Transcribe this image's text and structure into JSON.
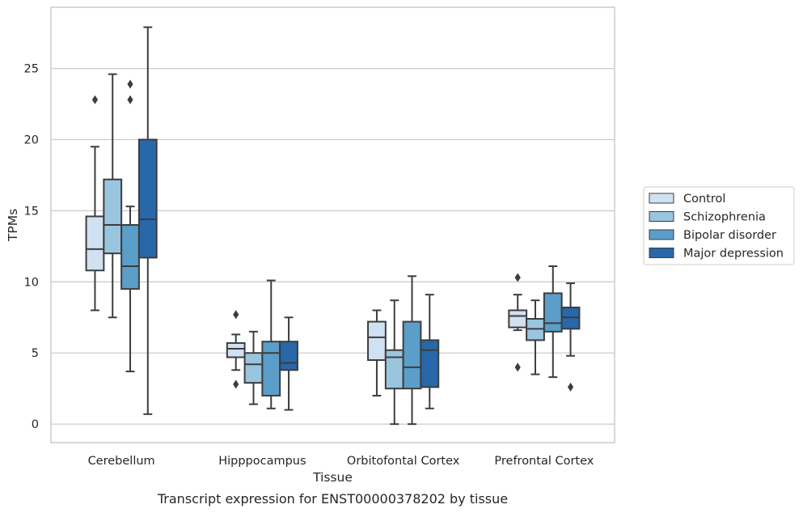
{
  "chart_data": {
    "type": "box",
    "title": "",
    "caption": "Transcript expression for ENST00000378202 by tissue",
    "xlabel": "Tissue",
    "ylabel": "TPMs",
    "ylim": [
      -1.3,
      29.3
    ],
    "yticks": [
      0,
      5,
      10,
      15,
      20,
      25
    ],
    "grid": "horizontal",
    "legend_placement": "right",
    "categories": [
      "Cerebellum",
      "Hipppocampus",
      "Orbitofontal Cortex",
      "Prefrontal Cortex"
    ],
    "series": [
      {
        "name": "Control",
        "color": "#d0e1f2",
        "boxes": [
          {
            "whisker_low": 8.0,
            "q1": 10.8,
            "median": 12.3,
            "q3": 14.6,
            "whisker_high": 19.5,
            "outliers": [
              22.8
            ]
          },
          {
            "whisker_low": 3.8,
            "q1": 4.7,
            "median": 5.3,
            "q3": 5.7,
            "whisker_high": 6.3,
            "outliers": [
              7.7,
              2.8
            ]
          },
          {
            "whisker_low": 2.0,
            "q1": 4.5,
            "median": 6.1,
            "q3": 7.2,
            "whisker_high": 8.0,
            "outliers": []
          },
          {
            "whisker_low": 6.6,
            "q1": 6.8,
            "median": 7.6,
            "q3": 8.0,
            "whisker_high": 9.1,
            "outliers": [
              10.3,
              4.0
            ]
          }
        ]
      },
      {
        "name": "Schizophrenia",
        "color": "#9ac5df",
        "boxes": [
          {
            "whisker_low": 7.5,
            "q1": 12.0,
            "median": 14.0,
            "q3": 17.2,
            "whisker_high": 24.6,
            "outliers": []
          },
          {
            "whisker_low": 1.4,
            "q1": 2.9,
            "median": 4.2,
            "q3": 5.0,
            "whisker_high": 6.5,
            "outliers": []
          },
          {
            "whisker_low": 0.0,
            "q1": 2.5,
            "median": 4.7,
            "q3": 5.2,
            "whisker_high": 8.7,
            "outliers": []
          },
          {
            "whisker_low": 3.5,
            "q1": 5.9,
            "median": 6.7,
            "q3": 7.4,
            "whisker_high": 8.7,
            "outliers": []
          }
        ]
      },
      {
        "name": "Bipolar disorder",
        "color": "#5a9ec9",
        "boxes": [
          {
            "whisker_low": 3.7,
            "q1": 9.5,
            "median": 11.1,
            "q3": 14.0,
            "whisker_high": 15.3,
            "outliers": [
              23.9,
              22.8
            ]
          },
          {
            "whisker_low": 1.1,
            "q1": 2.0,
            "median": 5.0,
            "q3": 5.8,
            "whisker_high": 10.1,
            "outliers": []
          },
          {
            "whisker_low": 0.0,
            "q1": 2.5,
            "median": 4.0,
            "q3": 7.2,
            "whisker_high": 10.4,
            "outliers": []
          },
          {
            "whisker_low": 3.3,
            "q1": 6.5,
            "median": 7.1,
            "q3": 9.2,
            "whisker_high": 11.1,
            "outliers": []
          }
        ]
      },
      {
        "name": "Major depression",
        "color": "#2867a9",
        "boxes": [
          {
            "whisker_low": 0.7,
            "q1": 11.7,
            "median": 14.4,
            "q3": 20.0,
            "whisker_high": 27.9,
            "outliers": []
          },
          {
            "whisker_low": 1.0,
            "q1": 3.8,
            "median": 4.3,
            "q3": 5.8,
            "whisker_high": 7.5,
            "outliers": []
          },
          {
            "whisker_low": 1.1,
            "q1": 2.6,
            "median": 5.2,
            "q3": 5.9,
            "whisker_high": 9.1,
            "outliers": []
          },
          {
            "whisker_low": 4.8,
            "q1": 6.7,
            "median": 7.5,
            "q3": 8.2,
            "whisker_high": 9.9,
            "outliers": [
              2.6
            ]
          }
        ]
      }
    ]
  }
}
